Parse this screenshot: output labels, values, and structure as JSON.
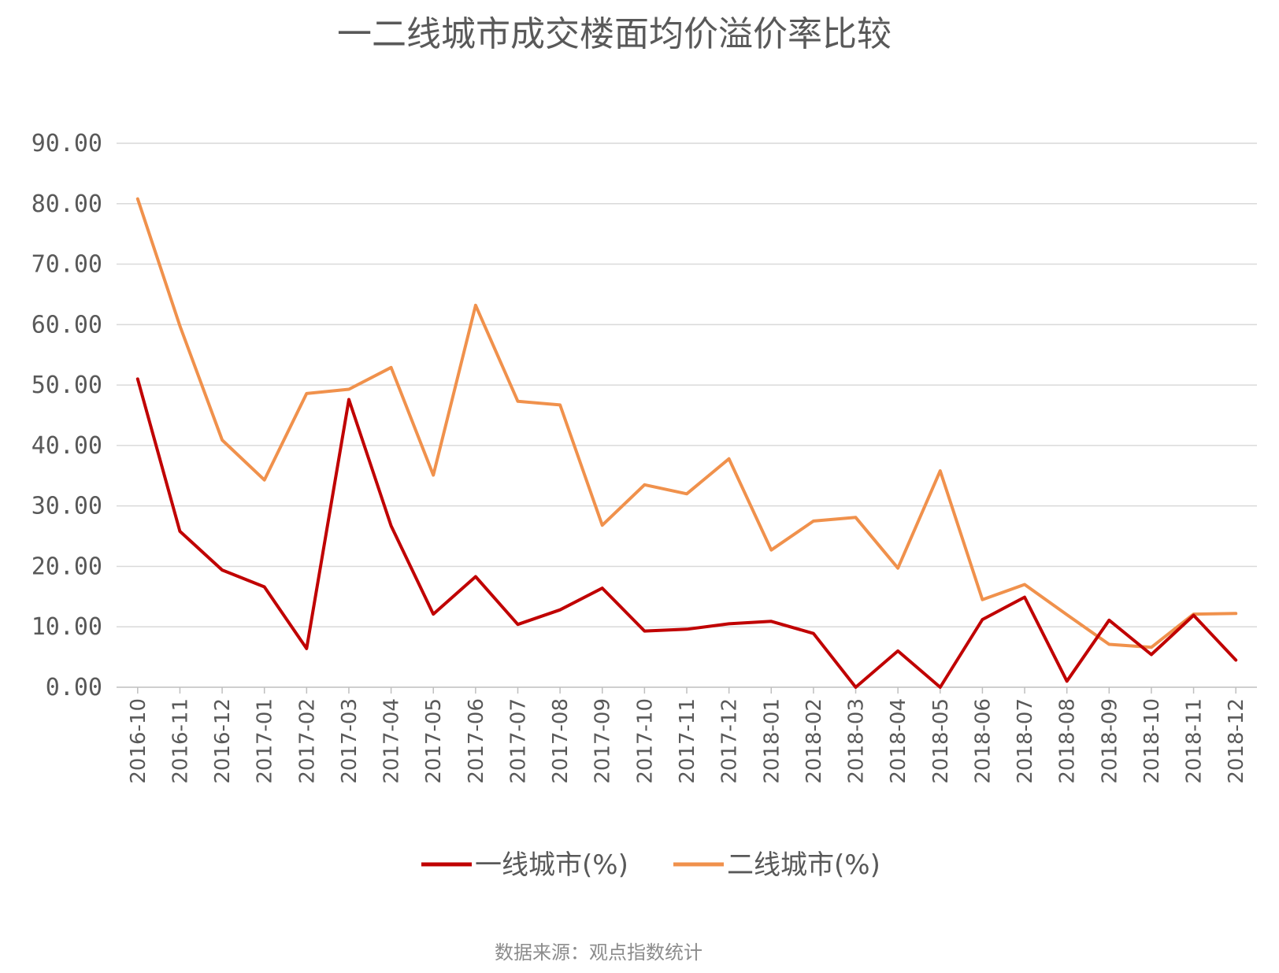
{
  "chart_data": {
    "type": "line",
    "title": "一二线城市成交楼面均价溢价率比较",
    "source": "数据来源：观点指数统计",
    "xlabel": "",
    "ylabel": "",
    "ylim": [
      0,
      90
    ],
    "yticks": [
      "0.00",
      "10.00",
      "20.00",
      "30.00",
      "40.00",
      "50.00",
      "60.00",
      "70.00",
      "80.00",
      "90.00"
    ],
    "categories": [
      "2016-10",
      "2016-11",
      "2016-12",
      "2017-01",
      "2017-02",
      "2017-03",
      "2017-04",
      "2017-05",
      "2017-06",
      "2017-07",
      "2017-08",
      "2017-09",
      "2017-10",
      "2017-11",
      "2017-12",
      "2018-01",
      "2018-02",
      "2018-03",
      "2018-04",
      "2018-05",
      "2018-06",
      "2018-07",
      "2018-08",
      "2018-09",
      "2018-10",
      "2018-11",
      "2018-12"
    ],
    "series": [
      {
        "name": "一线城市(%)",
        "color": "#c00000",
        "values": [
          51.0,
          25.8,
          19.4,
          16.6,
          6.4,
          47.6,
          26.7,
          12.1,
          18.3,
          10.4,
          12.8,
          16.4,
          9.3,
          9.6,
          10.5,
          10.9,
          8.9,
          0.0,
          6.0,
          0.0,
          11.2,
          14.9,
          1.0,
          11.1,
          5.4,
          11.9,
          4.5
        ]
      },
      {
        "name": "二线城市(%)",
        "color": "#f0914c",
        "values": [
          80.8,
          59.8,
          40.9,
          34.3,
          48.6,
          49.3,
          52.9,
          35.1,
          63.2,
          47.3,
          46.7,
          26.8,
          33.5,
          32.0,
          37.8,
          22.7,
          27.5,
          28.1,
          19.7,
          35.8,
          14.5,
          17.0,
          12.0,
          7.1,
          6.6,
          12.1,
          12.2
        ]
      }
    ],
    "legend_position": "bottom",
    "grid": true
  }
}
